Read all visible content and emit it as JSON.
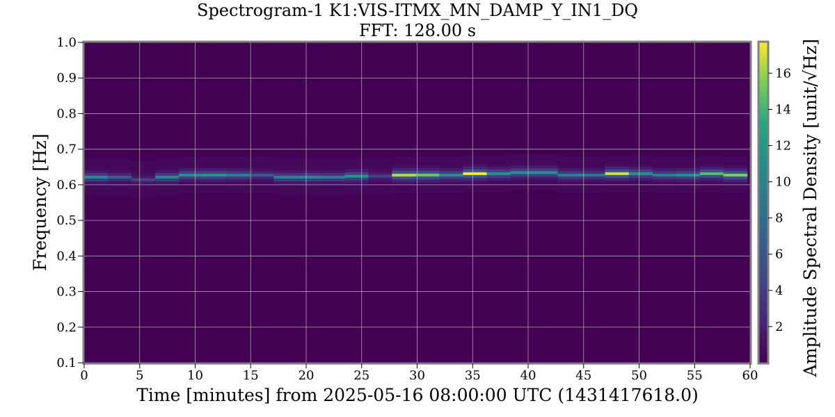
{
  "chart_data": {
    "type": "heatmap",
    "title": "Spectrogram-1 K1:VIS-ITMX_MN_DAMP_Y_IN1_DQ",
    "subtitle": "FFT: 128.00 s",
    "xlabel": "Time [minutes] from 2025-05-16 08:00:00 UTC (1431417618.0)",
    "ylabel": "Frequency [Hz]",
    "colorbar_label_prefix": "Amplitude Spectral Density [unit/",
    "colorbar_label_root": "Hz",
    "colorbar_label_suffix": "]",
    "colormap": "viridis",
    "grid": true,
    "xlim": [
      0,
      60
    ],
    "ylim": [
      0.1,
      1.0
    ],
    "clim": [
      0,
      17.7
    ],
    "x_ticks": [
      0,
      5,
      10,
      15,
      20,
      25,
      30,
      35,
      40,
      45,
      50,
      55,
      60
    ],
    "x_tick_labels": [
      "0",
      "5",
      "10",
      "15",
      "20",
      "25",
      "30",
      "35",
      "40",
      "45",
      "50",
      "55",
      "60"
    ],
    "y_ticks": [
      0.1,
      0.2,
      0.3,
      0.4,
      0.5,
      0.6,
      0.7,
      0.8,
      0.9,
      1.0
    ],
    "y_tick_labels": [
      "0.1",
      "0.2",
      "0.3",
      "0.4",
      "0.5",
      "0.6",
      "0.7",
      "0.8",
      "0.9",
      "1.0"
    ],
    "colorbar_ticks": [
      2,
      4,
      6,
      8,
      10,
      12,
      14,
      16
    ],
    "colorbar_tick_labels": [
      "2",
      "4",
      "6",
      "8",
      "10",
      "12",
      "14",
      "16"
    ],
    "time_bins_start_min": [
      0,
      2.13,
      4.27,
      6.4,
      8.53,
      10.67,
      12.8,
      14.93,
      17.07,
      19.2,
      21.33,
      23.47,
      25.6,
      27.73,
      29.87,
      32.0,
      34.13,
      36.27,
      38.4,
      40.53,
      42.67,
      44.8,
      46.93,
      49.07,
      51.2,
      53.33,
      55.47,
      57.6
    ],
    "time_bin_width_min": 2.13,
    "line_peak_frequency_hz": [
      0.622,
      0.622,
      0.615,
      0.622,
      0.628,
      0.628,
      0.628,
      0.628,
      0.622,
      0.622,
      0.622,
      0.625,
      0.625,
      0.628,
      0.628,
      0.628,
      0.632,
      0.632,
      0.635,
      0.635,
      0.628,
      0.628,
      0.632,
      0.632,
      0.628,
      0.628,
      0.632,
      0.628
    ],
    "line_peak_asd": [
      10.5,
      7.0,
      4.5,
      10.5,
      11.2,
      12.0,
      10.0,
      6.5,
      10.0,
      10.5,
      9.5,
      11.5,
      4.5,
      16.5,
      15.0,
      11.0,
      17.7,
      11.5,
      11.5,
      11.5,
      10.0,
      9.0,
      17.0,
      11.5,
      10.0,
      11.5,
      14.5,
      15.5
    ],
    "background_asd": 0.5
  }
}
